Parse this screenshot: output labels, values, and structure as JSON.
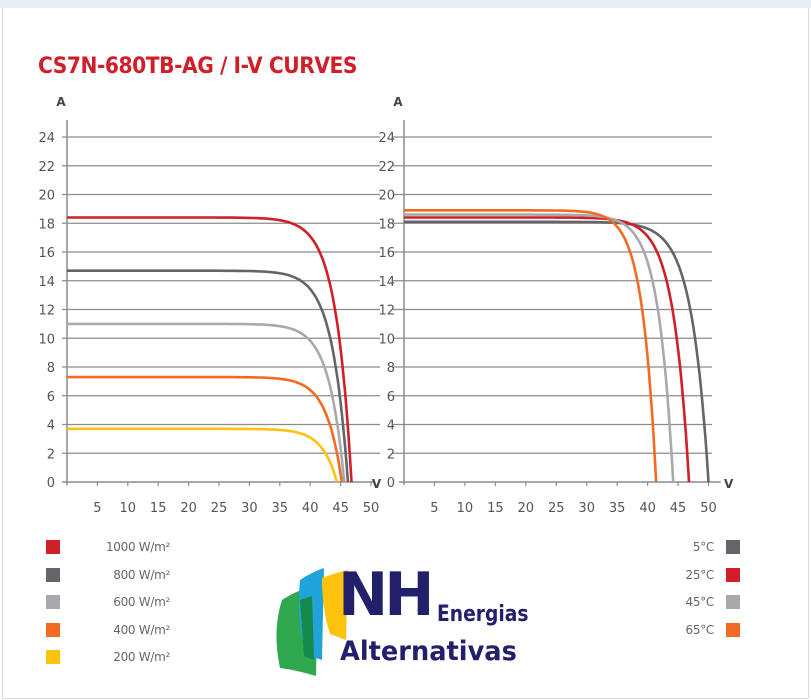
{
  "title": "CS7N-680TB-AG / I-V CURVES",
  "colors": {
    "red": "#d11f2a",
    "dark_gray": "#626569",
    "light_gray": "#a7a9ac",
    "orange": "#f26b21",
    "yellow": "#ffc20e",
    "title": "#d11f2a",
    "logo_navy": "#23206b"
  },
  "chart_data": [
    {
      "type": "line",
      "ylabel": "A",
      "xlabel": "V",
      "xlim": [
        0,
        50
      ],
      "ylim": [
        0,
        24
      ],
      "xticks": [
        "5",
        "10",
        "15",
        "20",
        "25",
        "30",
        "35",
        "40",
        "45",
        "50"
      ],
      "yticks": [
        "0",
        "2",
        "4",
        "6",
        "8",
        "10",
        "12",
        "14",
        "16",
        "18",
        "20",
        "22",
        "24"
      ],
      "grid": true,
      "legend": "bottom-left",
      "series": [
        {
          "name": "1000 W/m²",
          "color": "#d11f2a",
          "isc": 18.4,
          "voc": 46.8
        },
        {
          "name": "800 W/m²",
          "color": "#626569",
          "isc": 14.7,
          "voc": 46.2
        },
        {
          "name": "600 W/m²",
          "color": "#a7a9ac",
          "isc": 11.0,
          "voc": 45.6
        },
        {
          "name": "400 W/m²",
          "color": "#f26b21",
          "isc": 7.3,
          "voc": 45.2
        },
        {
          "name": "200 W/m²",
          "color": "#ffc20e",
          "isc": 3.7,
          "voc": 44.4
        }
      ]
    },
    {
      "type": "line",
      "ylabel": "A",
      "xlabel": "V",
      "xlim": [
        0,
        50
      ],
      "ylim": [
        0,
        24
      ],
      "xticks": [
        "5",
        "10",
        "15",
        "20",
        "25",
        "30",
        "35",
        "40",
        "45",
        "50"
      ],
      "yticks": [
        "0",
        "2",
        "4",
        "6",
        "8",
        "10",
        "12",
        "14",
        "16",
        "18",
        "20",
        "22",
        "24"
      ],
      "grid": true,
      "legend": "bottom-right",
      "series": [
        {
          "name": "5°C",
          "color": "#626569",
          "isc": 18.1,
          "voc": 50.0
        },
        {
          "name": "25°C",
          "color": "#d11f2a",
          "isc": 18.4,
          "voc": 46.8
        },
        {
          "name": "45°C",
          "color": "#a7a9ac",
          "isc": 18.6,
          "voc": 44.2
        },
        {
          "name": "65°C",
          "color": "#f26b21",
          "isc": 18.9,
          "voc": 41.4
        }
      ]
    }
  ],
  "logo": {
    "nh": "NH",
    "energias": "Energias",
    "alternativas": "Alternativas"
  }
}
